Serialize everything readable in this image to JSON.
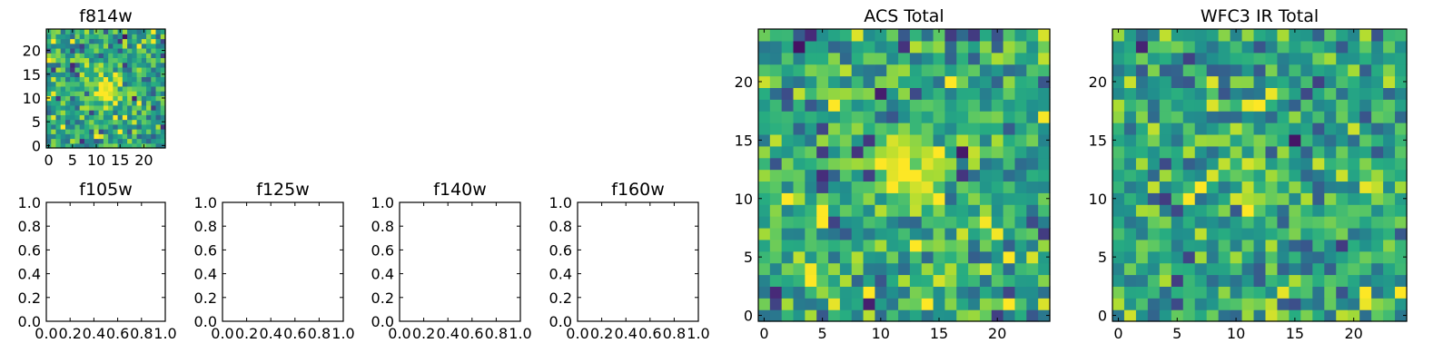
{
  "chart_data": [
    {
      "type": "heatmap",
      "title": "f814w",
      "xlabel": "",
      "ylabel": "",
      "xlim": [
        -0.5,
        24.5
      ],
      "ylim": [
        -0.5,
        24.5
      ],
      "xticks": [
        "0",
        "5",
        "10",
        "15",
        "20"
      ],
      "yticks": [
        "0",
        "5",
        "10",
        "15",
        "20"
      ],
      "grid": false,
      "colormap": "viridis",
      "source_feature": {
        "center": [
          12,
          12
        ],
        "sigma": 2.2,
        "amplitude": 0.55
      },
      "noise_seed": 11,
      "noise_level": 0.33
    },
    {
      "type": "scatter",
      "title": "f105w",
      "xlim": [
        0.0,
        1.0
      ],
      "ylim": [
        0.0,
        1.0
      ],
      "xticks": [
        "0.0",
        "0.2",
        "0.4",
        "0.6",
        "0.8",
        "1.0"
      ],
      "yticks": [
        "0.0",
        "0.2",
        "0.4",
        "0.6",
        "0.8",
        "1.0"
      ],
      "series": []
    },
    {
      "type": "scatter",
      "title": "f125w",
      "xlim": [
        0.0,
        1.0
      ],
      "ylim": [
        0.0,
        1.0
      ],
      "xticks": [
        "0.0",
        "0.2",
        "0.4",
        "0.6",
        "0.8",
        "1.0"
      ],
      "yticks": [
        "0.0",
        "0.2",
        "0.4",
        "0.6",
        "0.8",
        "1.0"
      ],
      "series": []
    },
    {
      "type": "scatter",
      "title": "f140w",
      "xlim": [
        0.0,
        1.0
      ],
      "ylim": [
        0.0,
        1.0
      ],
      "xticks": [
        "0.0",
        "0.2",
        "0.4",
        "0.6",
        "0.8",
        "1.0"
      ],
      "yticks": [
        "0.0",
        "0.2",
        "0.4",
        "0.6",
        "0.8",
        "1.0"
      ],
      "series": []
    },
    {
      "type": "scatter",
      "title": "f160w",
      "xlim": [
        0.0,
        1.0
      ],
      "ylim": [
        0.0,
        1.0
      ],
      "xticks": [
        "0.0",
        "0.2",
        "0.4",
        "0.6",
        "0.8",
        "1.0"
      ],
      "yticks": [
        "0.0",
        "0.2",
        "0.4",
        "0.6",
        "0.8",
        "1.0"
      ],
      "series": []
    },
    {
      "type": "heatmap",
      "title": "ACS Total",
      "xlim": [
        -0.5,
        24.5
      ],
      "ylim": [
        -0.5,
        24.5
      ],
      "xticks": [
        "0",
        "5",
        "10",
        "15",
        "20"
      ],
      "yticks": [
        "0",
        "5",
        "10",
        "15",
        "20"
      ],
      "grid": false,
      "colormap": "viridis",
      "source_feature": {
        "center": [
          12.5,
          12.5
        ],
        "sigma": 2.0,
        "amplitude": 0.45
      },
      "noise_seed": 23,
      "noise_level": 0.34
    },
    {
      "type": "heatmap",
      "title": "WFC3 IR Total",
      "xlim": [
        -0.5,
        24.5
      ],
      "ylim": [
        -0.5,
        24.5
      ],
      "xticks": [
        "0",
        "5",
        "10",
        "15",
        "20"
      ],
      "yticks": [
        "0",
        "5",
        "10",
        "15",
        "20"
      ],
      "grid": false,
      "colormap": "viridis",
      "source_feature": {
        "center": [
          12,
          12
        ],
        "sigma": 2.0,
        "amplitude": 0.1
      },
      "noise_seed": 37,
      "noise_level": 0.32
    }
  ]
}
